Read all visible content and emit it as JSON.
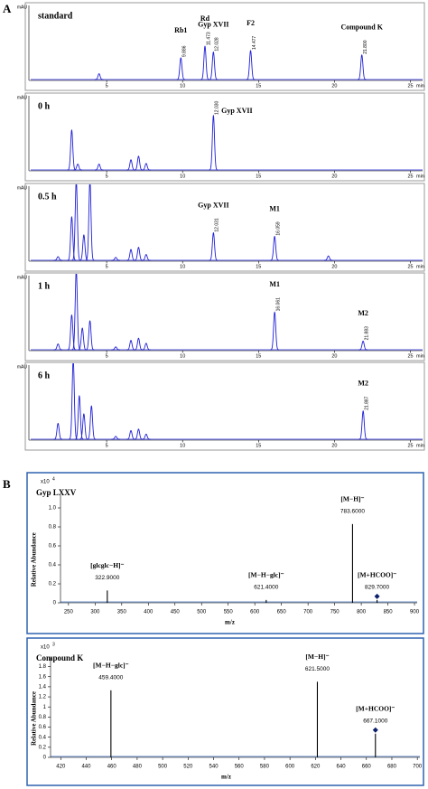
{
  "panel_labels": [
    "A",
    "B"
  ],
  "chart_data": [
    {
      "type": "chromatogram",
      "title": "standard",
      "y_label": "mAU",
      "x_unit": "min",
      "xlim": [
        0,
        25.8
      ],
      "xticks": [
        5,
        10,
        15,
        20,
        25
      ],
      "ylim": [
        0,
        100
      ],
      "color": "#1f1fd6",
      "peaks": [
        {
          "rt": 4.5,
          "height": 8
        }
      ],
      "annotated_peaks": [
        {
          "rt": 9.886,
          "height": 30,
          "name": "Rb1"
        },
        {
          "rt": 11.473,
          "height": 46,
          "name": "Rd"
        },
        {
          "rt": 12.028,
          "height": 38,
          "name": "Gyp XVII"
        },
        {
          "rt": 14.477,
          "height": 40,
          "name": "F2"
        },
        {
          "rt": 21.8,
          "rt_label": "21.800",
          "height": 34,
          "name": "Compound K"
        }
      ]
    },
    {
      "type": "chromatogram",
      "title": "0 h",
      "y_label": "mAU",
      "x_unit": "min",
      "xlim": [
        0,
        25.8
      ],
      "xticks": [
        5,
        10,
        15,
        20,
        25
      ],
      "ylim": [
        0,
        100
      ],
      "color": "#1f1fd6",
      "peaks": [
        {
          "rt": 2.7,
          "height": 55
        },
        {
          "rt": 3.1,
          "height": 8
        },
        {
          "rt": 4.5,
          "height": 8
        },
        {
          "rt": 6.6,
          "height": 14
        },
        {
          "rt": 7.1,
          "height": 19
        },
        {
          "rt": 7.6,
          "height": 9
        }
      ],
      "annotated_peaks": [
        {
          "rt": 12.03,
          "rt_label": "12.030",
          "height": 75,
          "name": "Gyp XVII"
        }
      ]
    },
    {
      "type": "chromatogram",
      "title": "0.5 h",
      "y_label": "mAU",
      "x_unit": "min",
      "xlim": [
        0,
        25.8
      ],
      "xticks": [
        5,
        10,
        15,
        20,
        25
      ],
      "ylim": [
        0,
        100
      ],
      "color": "#1f1fd6",
      "peaks": [
        {
          "rt": 1.8,
          "height": 5
        },
        {
          "rt": 2.7,
          "height": 60
        },
        {
          "rt": 3.0,
          "height": 110
        },
        {
          "rt": 3.5,
          "height": 35
        },
        {
          "rt": 3.9,
          "height": 110
        },
        {
          "rt": 5.6,
          "height": 4
        },
        {
          "rt": 6.6,
          "height": 15
        },
        {
          "rt": 7.1,
          "height": 18
        },
        {
          "rt": 7.6,
          "height": 8
        },
        {
          "rt": 19.6,
          "height": 6
        }
      ],
      "annotated_peaks": [
        {
          "rt": 12.031,
          "height": 38,
          "name": "Gyp XVII"
        },
        {
          "rt": 16.059,
          "height": 33,
          "name": "M1"
        }
      ]
    },
    {
      "type": "chromatogram",
      "title": "1 h",
      "y_label": "mAU",
      "x_unit": "min",
      "xlim": [
        0,
        25.8
      ],
      "xticks": [
        5,
        10,
        15,
        20,
        25
      ],
      "ylim": [
        0,
        100
      ],
      "color": "#1f1fd6",
      "peaks": [
        {
          "rt": 1.8,
          "height": 8
        },
        {
          "rt": 2.7,
          "height": 48
        },
        {
          "rt": 3.0,
          "height": 110
        },
        {
          "rt": 3.4,
          "height": 30
        },
        {
          "rt": 3.9,
          "height": 40
        },
        {
          "rt": 5.6,
          "height": 4
        },
        {
          "rt": 6.6,
          "height": 13
        },
        {
          "rt": 7.1,
          "height": 16
        },
        {
          "rt": 7.6,
          "height": 9
        }
      ],
      "annotated_peaks": [
        {
          "rt": 16.061,
          "height": 52,
          "name": "M1"
        },
        {
          "rt": 21.883,
          "height": 12,
          "name": "M2"
        }
      ]
    },
    {
      "type": "chromatogram",
      "title": "6 h",
      "y_label": "mAU",
      "x_unit": "min",
      "xlim": [
        0,
        25.8
      ],
      "xticks": [
        5,
        10,
        15,
        20,
        25
      ],
      "ylim": [
        0,
        100
      ],
      "color": "#1f1fd6",
      "peaks": [
        {
          "rt": 1.8,
          "height": 22
        },
        {
          "rt": 2.8,
          "height": 110
        },
        {
          "rt": 3.2,
          "height": 60
        },
        {
          "rt": 3.5,
          "height": 35
        },
        {
          "rt": 4.0,
          "height": 46
        },
        {
          "rt": 5.6,
          "height": 4
        },
        {
          "rt": 6.6,
          "height": 12
        },
        {
          "rt": 7.1,
          "height": 14
        },
        {
          "rt": 7.6,
          "height": 7
        }
      ],
      "annotated_peaks": [
        {
          "rt": 21.887,
          "height": 39,
          "name": "M2"
        }
      ]
    },
    {
      "type": "spectrum",
      "title": "Gyp LXXV",
      "x_label": "m/z",
      "y_label": "Relative Abundance",
      "y_multiplier": "x10",
      "y_exponent": "4",
      "color": "#000000",
      "xlim": [
        235,
        905
      ],
      "xticks": [
        250,
        300,
        350,
        400,
        450,
        500,
        550,
        600,
        650,
        700,
        750,
        800,
        850,
        900
      ],
      "ylim": [
        0,
        1.1
      ],
      "yticks": [
        0,
        0.2,
        0.4,
        0.6,
        0.8,
        {
          "value": 1,
          "label": "1.0"
        }
      ],
      "peaks": [
        {
          "mz": 322.9,
          "mz_label": "322.9000",
          "height": 0.13,
          "ion": "[glcglc−H]⁻"
        },
        {
          "mz": 621.4,
          "mz_label": "621.4000",
          "height": 0.03,
          "ion": "[M−H−glc]⁻"
        },
        {
          "mz": 783.6,
          "mz_label": "783.6000",
          "height": 0.83,
          "ion": "[M−H]⁻"
        },
        {
          "mz": 829.7,
          "mz_label": "829.7000",
          "height": 0.03,
          "ion": "[M+HCOO]⁻",
          "marker": "diamond"
        }
      ]
    },
    {
      "type": "spectrum",
      "title": "Compound K",
      "x_label": "m/z",
      "y_label": "Relative Abundance",
      "y_multiplier": "x10",
      "y_exponent": "3",
      "color": "#000000",
      "xlim": [
        412,
        702
      ],
      "xticks": [
        420,
        440,
        460,
        480,
        500,
        520,
        540,
        560,
        580,
        600,
        620,
        640,
        660,
        680,
        700
      ],
      "ylim": [
        0,
        1.9
      ],
      "yticks": [
        0,
        0.2,
        0.4,
        0.6,
        0.8,
        1,
        1.2,
        1.4,
        1.6,
        1.8
      ],
      "peaks": [
        {
          "mz": 459.4,
          "mz_label": "459.4000",
          "height": 1.33,
          "ion": "[M−H−glc]⁻"
        },
        {
          "mz": 621.5,
          "mz_label": "621.5000",
          "height": 1.5,
          "ion": "[M−H]⁻"
        },
        {
          "mz": 667.1,
          "mz_label": "667.1000",
          "height": 0.47,
          "ion": "[M+HCOO]⁻",
          "marker": "diamond"
        }
      ]
    }
  ]
}
